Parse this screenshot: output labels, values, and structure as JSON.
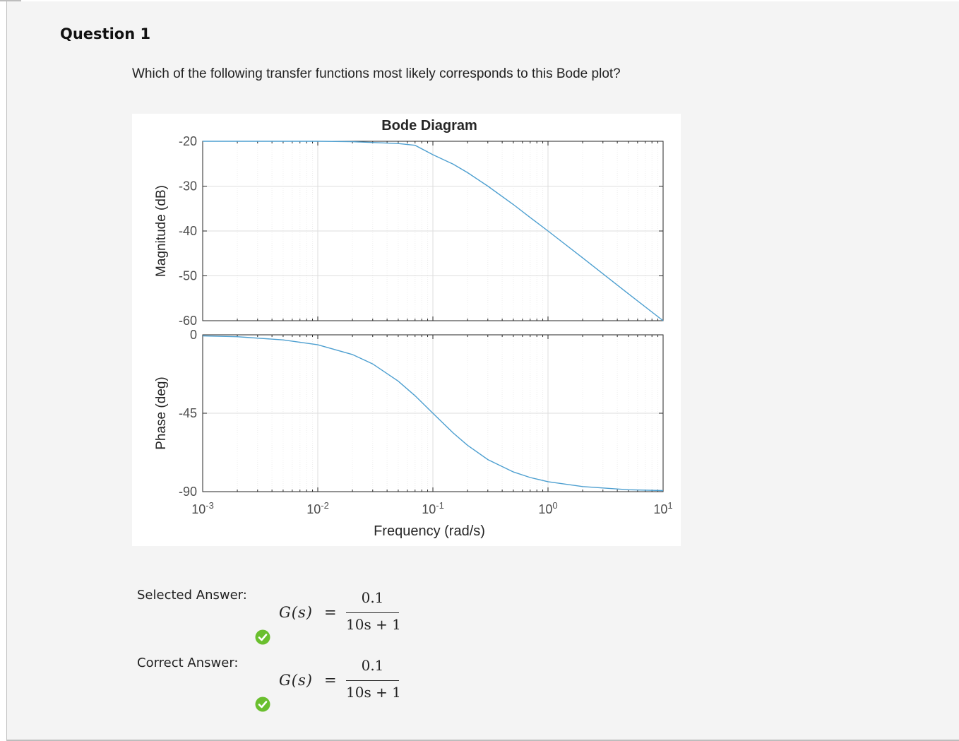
{
  "question": {
    "title": "Question 1",
    "text": "Which of the following transfer functions most likely corresponds to this Bode plot?"
  },
  "answers": {
    "selected": {
      "label": "Selected Answer:",
      "lhs": "G(s)",
      "equals": "=",
      "numerator": "0.1",
      "denominator": "10s + 1",
      "status_icon": "check-circle-icon",
      "status_color": "#6abf2e"
    },
    "correct": {
      "label": "Correct Answer:",
      "lhs": "G(s)",
      "equals": "=",
      "numerator": "0.1",
      "denominator": "10s + 1",
      "status_icon": "check-circle-icon",
      "status_color": "#6abf2e"
    }
  },
  "chart_data": {
    "type": "line",
    "title": "Bode Diagram",
    "xlabel": "Frequency  (rad/s)",
    "x_scale": "log",
    "xlim": [
      0.001,
      10
    ],
    "x_ticks": [
      {
        "base": "10",
        "exp": "-3",
        "value": 0.001
      },
      {
        "base": "10",
        "exp": "-2",
        "value": 0.01
      },
      {
        "base": "10",
        "exp": "-1",
        "value": 0.1
      },
      {
        "base": "10",
        "exp": "0",
        "value": 1
      },
      {
        "base": "10",
        "exp": "1",
        "value": 10
      }
    ],
    "grid": true,
    "line_color": "#4d9fd0",
    "magnitude": {
      "ylabel": "Magnitude (dB)",
      "ylim": [
        -60,
        -20
      ],
      "y_ticks": [
        "-20",
        "-30",
        "-40",
        "-50",
        "-60"
      ],
      "y_tick_values": [
        -20,
        -30,
        -40,
        -50,
        -60
      ],
      "series": {
        "x": [
          0.001,
          0.002,
          0.005,
          0.01,
          0.02,
          0.05,
          0.07,
          0.1,
          0.15,
          0.2,
          0.3,
          0.5,
          0.7,
          1,
          2,
          5,
          10
        ],
        "y": [
          -20.0,
          -20.0,
          -20.0,
          -20.0,
          -20.1,
          -20.5,
          -20.9,
          -23.0,
          -25.1,
          -27.0,
          -30.0,
          -34.1,
          -37.0,
          -40.0,
          -46.0,
          -54.0,
          -60.0
        ]
      }
    },
    "phase": {
      "ylabel": "Phase (deg)",
      "ylim": [
        -90,
        0
      ],
      "y_ticks": [
        "0",
        "-45",
        "-90"
      ],
      "y_tick_values": [
        0,
        -45,
        -90
      ],
      "series": {
        "x": [
          0.001,
          0.002,
          0.005,
          0.01,
          0.02,
          0.03,
          0.05,
          0.07,
          0.1,
          0.15,
          0.2,
          0.3,
          0.5,
          0.7,
          1,
          2,
          5,
          10
        ],
        "y": [
          -0.6,
          -1.1,
          -2.9,
          -5.7,
          -11.3,
          -16.7,
          -26.6,
          -35.0,
          -45.0,
          -56.3,
          -63.4,
          -71.6,
          -78.7,
          -81.9,
          -84.3,
          -87.1,
          -88.9,
          -89.4
        ]
      }
    }
  }
}
